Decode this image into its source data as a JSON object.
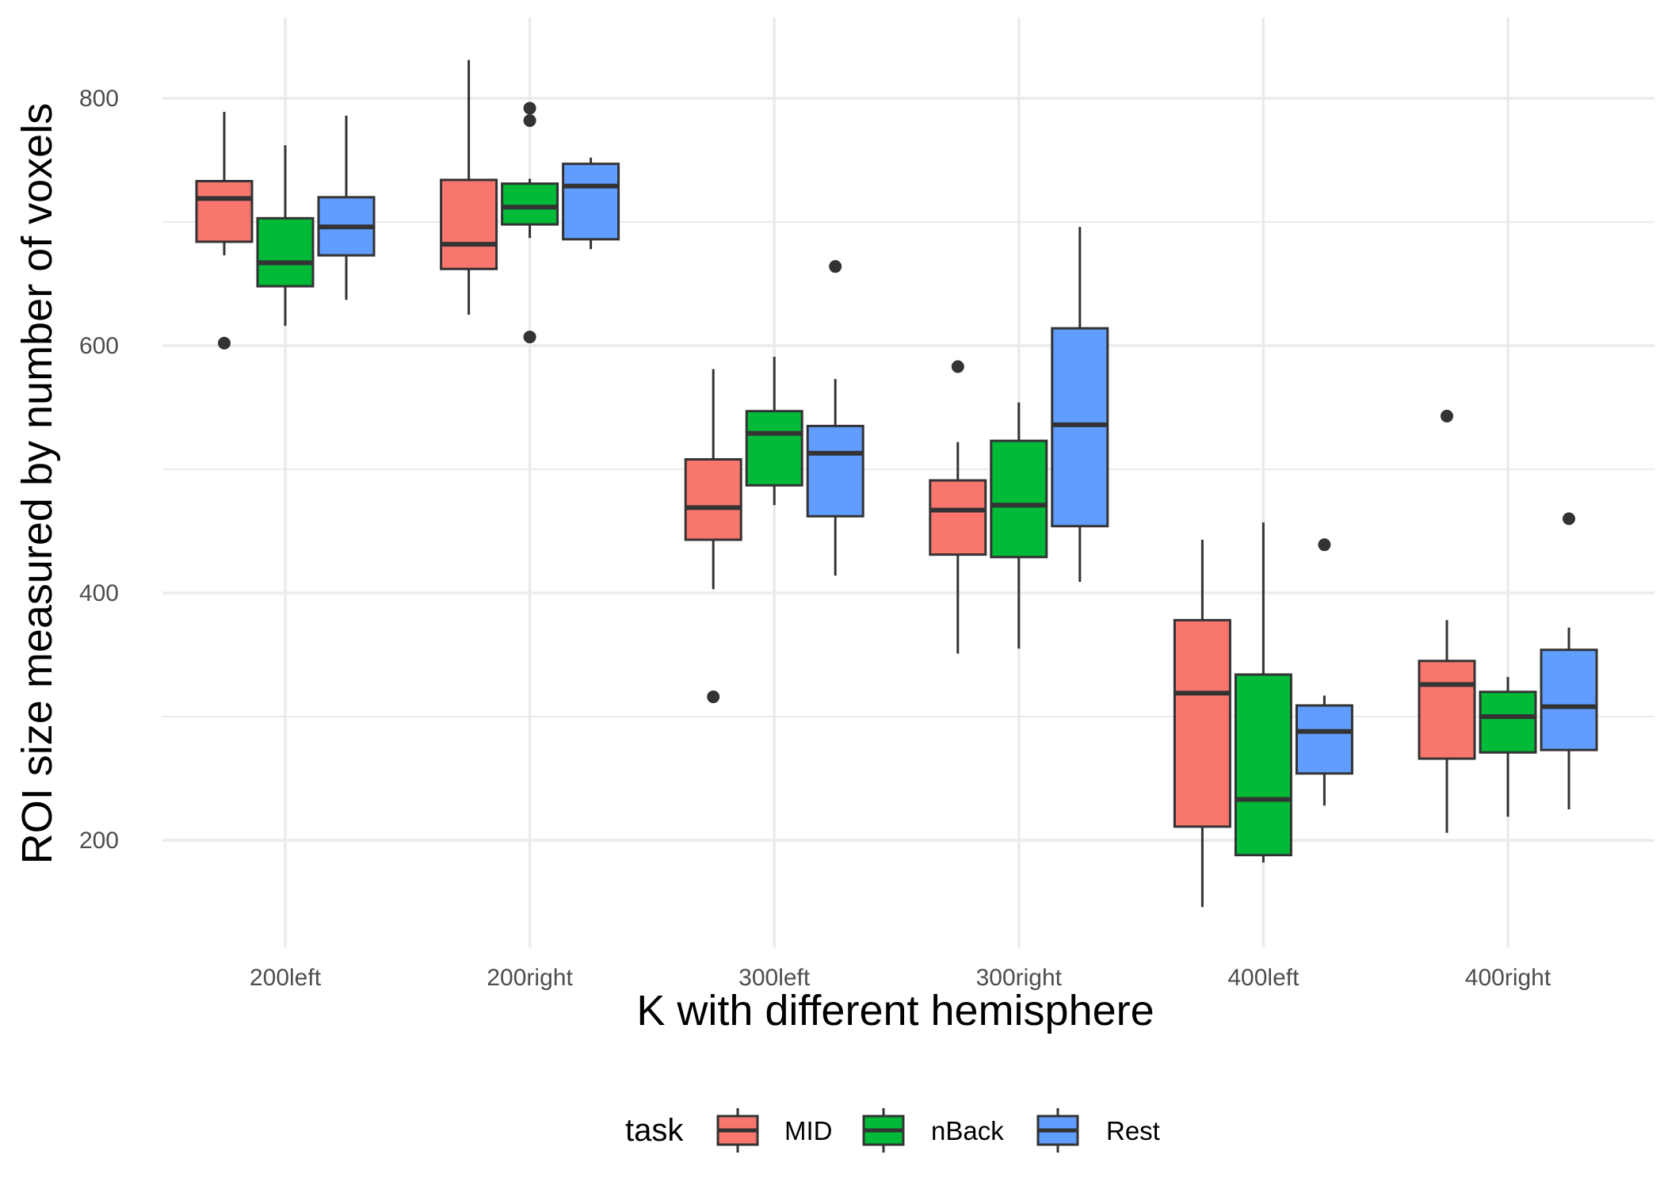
{
  "chart_data": {
    "type": "box",
    "xlabel": "K with different hemisphere",
    "ylabel": "ROI size measured by number of voxels",
    "categories": [
      "200left",
      "200right",
      "300left",
      "300right",
      "400left",
      "400right"
    ],
    "ylim": [
      110,
      870
    ],
    "yticks": [
      200,
      400,
      600,
      800
    ],
    "grid": true,
    "legend": {
      "title": "task",
      "placement": "bottom",
      "entries": [
        "MID",
        "nBack",
        "Rest"
      ]
    },
    "series": [
      {
        "name": "MID",
        "color": "#F8766D",
        "boxes": [
          {
            "category": "200left",
            "whisker_low": 673,
            "q1": 684,
            "median": 719,
            "q3": 733,
            "whisker_high": 789,
            "outliers": [
              602
            ]
          },
          {
            "category": "200right",
            "whisker_low": 625,
            "q1": 662,
            "median": 682,
            "q3": 734,
            "whisker_high": 831,
            "outliers": []
          },
          {
            "category": "300left",
            "whisker_low": 403,
            "q1": 443,
            "median": 469,
            "q3": 508,
            "whisker_high": 581,
            "outliers": [
              316
            ]
          },
          {
            "category": "300right",
            "whisker_low": 351,
            "q1": 431,
            "median": 467,
            "q3": 491,
            "whisker_high": 522,
            "outliers": [
              583
            ]
          },
          {
            "category": "400left",
            "whisker_low": 146,
            "q1": 211,
            "median": 319,
            "q3": 378,
            "whisker_high": 443,
            "outliers": []
          },
          {
            "category": "400right",
            "whisker_low": 206,
            "q1": 266,
            "median": 326,
            "q3": 345,
            "whisker_high": 378,
            "outliers": [
              543
            ]
          }
        ]
      },
      {
        "name": "nBack",
        "color": "#00BA38",
        "boxes": [
          {
            "category": "200left",
            "whisker_low": 616,
            "q1": 648,
            "median": 667,
            "q3": 703,
            "whisker_high": 762,
            "outliers": []
          },
          {
            "category": "200right",
            "whisker_low": 687,
            "q1": 698,
            "median": 712,
            "q3": 731,
            "whisker_high": 735,
            "outliers": [
              607,
              782,
              792
            ]
          },
          {
            "category": "300left",
            "whisker_low": 471,
            "q1": 487,
            "median": 529,
            "q3": 547,
            "whisker_high": 591,
            "outliers": []
          },
          {
            "category": "300right",
            "whisker_low": 355,
            "q1": 429,
            "median": 471,
            "q3": 523,
            "whisker_high": 554,
            "outliers": []
          },
          {
            "category": "400left",
            "whisker_low": 182,
            "q1": 188,
            "median": 233,
            "q3": 334,
            "whisker_high": 457,
            "outliers": []
          },
          {
            "category": "400right",
            "whisker_low": 219,
            "q1": 271,
            "median": 300,
            "q3": 320,
            "whisker_high": 332,
            "outliers": []
          }
        ]
      },
      {
        "name": "Rest",
        "color": "#619CFF",
        "boxes": [
          {
            "category": "200left",
            "whisker_low": 637,
            "q1": 673,
            "median": 696,
            "q3": 720,
            "whisker_high": 786,
            "outliers": []
          },
          {
            "category": "200right",
            "whisker_low": 678,
            "q1": 686,
            "median": 729,
            "q3": 747,
            "whisker_high": 752,
            "outliers": []
          },
          {
            "category": "300left",
            "whisker_low": 414,
            "q1": 462,
            "median": 513,
            "q3": 535,
            "whisker_high": 573,
            "outliers": [
              664
            ]
          },
          {
            "category": "300right",
            "whisker_low": 409,
            "q1": 454,
            "median": 536,
            "q3": 614,
            "whisker_high": 696,
            "outliers": []
          },
          {
            "category": "400left",
            "whisker_low": 228,
            "q1": 254,
            "median": 288,
            "q3": 309,
            "whisker_high": 317,
            "outliers": [
              439
            ]
          },
          {
            "category": "400right",
            "whisker_low": 225,
            "q1": 273,
            "median": 308,
            "q3": 354,
            "whisker_high": 372,
            "outliers": [
              460
            ]
          }
        ]
      }
    ]
  }
}
